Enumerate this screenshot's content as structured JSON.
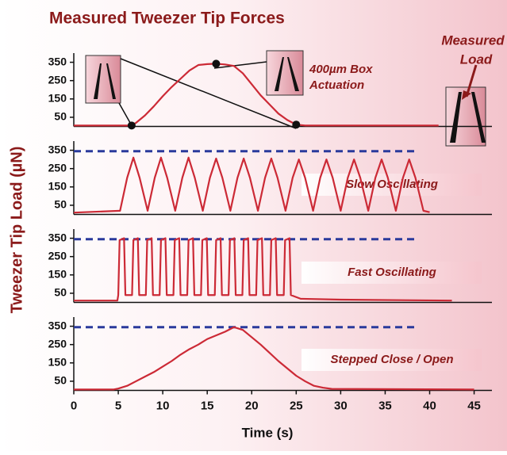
{
  "title": "Measured Tweezer Tip Forces",
  "y_label": "Tweezer Tip Load (µN)",
  "x_label": "Time (s)",
  "side_annotation": [
    "Measured",
    "Load"
  ],
  "chart_data": [
    {
      "type": "line",
      "annotation": [
        "400µm Box",
        "Actuation"
      ],
      "xlim": [
        0,
        47
      ],
      "ylim": [
        0,
        400
      ],
      "yticks": [
        50,
        150,
        250,
        350
      ],
      "x": [
        0,
        6.5,
        7,
        8,
        9,
        10,
        11,
        12,
        13,
        14,
        15,
        16,
        17,
        18,
        19,
        20,
        21,
        22,
        23,
        24,
        25,
        26,
        41
      ],
      "series": [
        {
          "color": "#cc2a36",
          "values": [
            5,
            5,
            20,
            60,
            110,
            165,
            215,
            260,
            305,
            335,
            340,
            342,
            338,
            330,
            290,
            230,
            170,
            120,
            70,
            35,
            10,
            5,
            5
          ]
        }
      ]
    },
    {
      "type": "line",
      "annotation": [
        "Slow Oscillating"
      ],
      "xlim": [
        0,
        47
      ],
      "ylim": [
        0,
        400
      ],
      "yticks": [
        50,
        150,
        250,
        350
      ],
      "reference": {
        "y": 345,
        "x": [
          0,
          38.7
        ],
        "color": "#2a3a9c"
      },
      "x": [
        0,
        5.2,
        6.0,
        6.7,
        7.4,
        8.3,
        9.1,
        9.8,
        10.5,
        11.4,
        12.2,
        12.9,
        13.6,
        14.5,
        15.3,
        16.0,
        16.7,
        17.6,
        18.4,
        19.1,
        19.8,
        20.7,
        21.5,
        22.2,
        22.9,
        23.8,
        24.6,
        25.3,
        26.0,
        26.9,
        27.7,
        28.4,
        29.1,
        30.0,
        30.8,
        31.5,
        32.2,
        33.1,
        33.9,
        34.6,
        35.3,
        36.2,
        37.0,
        37.7,
        38.4,
        39.3,
        40
      ],
      "series": [
        {
          "color": "#cc2a36",
          "values": [
            10,
            20,
            200,
            310,
            200,
            20,
            200,
            310,
            200,
            20,
            200,
            310,
            200,
            20,
            200,
            305,
            200,
            20,
            200,
            305,
            200,
            20,
            200,
            305,
            200,
            20,
            200,
            300,
            200,
            20,
            200,
            300,
            200,
            20,
            200,
            300,
            200,
            20,
            200,
            300,
            200,
            20,
            200,
            300,
            200,
            20,
            12
          ]
        }
      ]
    },
    {
      "type": "line",
      "annotation": [
        "Fast Oscillating"
      ],
      "xlim": [
        0,
        47
      ],
      "ylim": [
        0,
        400
      ],
      "yticks": [
        50,
        150,
        250,
        350
      ],
      "reference": {
        "y": 345,
        "x": [
          0,
          38.7
        ],
        "color": "#2a3a9c"
      },
      "x": [
        0,
        4.9,
        5.0,
        5.15,
        5.65,
        5.8,
        6.55,
        6.7,
        7.2,
        7.35,
        8.1,
        8.25,
        8.75,
        8.9,
        9.65,
        9.8,
        10.3,
        10.45,
        11.2,
        11.35,
        11.85,
        12.0,
        12.75,
        12.9,
        13.4,
        13.55,
        14.3,
        14.45,
        14.95,
        15.1,
        15.85,
        16.0,
        16.5,
        16.65,
        17.4,
        17.55,
        18.05,
        18.2,
        18.95,
        19.1,
        19.6,
        19.75,
        20.5,
        20.65,
        21.15,
        21.3,
        22.05,
        22.2,
        22.7,
        22.85,
        23.6,
        23.75,
        24.25,
        24.4,
        25.5,
        30,
        42.5
      ],
      "series": [
        {
          "color": "#cc2a36",
          "values": [
            10,
            10,
            40,
            340,
            350,
            40,
            40,
            340,
            350,
            40,
            40,
            340,
            350,
            40,
            40,
            340,
            350,
            40,
            40,
            340,
            350,
            40,
            40,
            340,
            350,
            40,
            40,
            340,
            350,
            40,
            40,
            340,
            350,
            40,
            40,
            340,
            350,
            40,
            40,
            340,
            350,
            40,
            40,
            340,
            350,
            40,
            40,
            340,
            350,
            40,
            40,
            340,
            350,
            40,
            20,
            15,
            10
          ]
        }
      ]
    },
    {
      "type": "line",
      "annotation": [
        "Stepped Close / Open"
      ],
      "xlim": [
        0,
        47
      ],
      "ylim": [
        0,
        400
      ],
      "yticks": [
        50,
        150,
        250,
        350
      ],
      "xticks": [
        0,
        5,
        10,
        15,
        20,
        25,
        30,
        35,
        40,
        45
      ],
      "reference": {
        "y": 345,
        "x": [
          0,
          38.7
        ],
        "color": "#2a3a9c"
      },
      "x": [
        0,
        4.5,
        5,
        6,
        7,
        8,
        9,
        10,
        11,
        12,
        13,
        14,
        15,
        16,
        17,
        18,
        19,
        20,
        21,
        22,
        23,
        24,
        25,
        26,
        27,
        28,
        29,
        45
      ],
      "series": [
        {
          "color": "#cc2a36",
          "values": [
            5,
            5,
            10,
            25,
            50,
            75,
            100,
            130,
            160,
            195,
            225,
            250,
            280,
            300,
            320,
            345,
            330,
            290,
            250,
            205,
            160,
            120,
            80,
            50,
            25,
            15,
            8,
            5
          ]
        }
      ]
    }
  ]
}
